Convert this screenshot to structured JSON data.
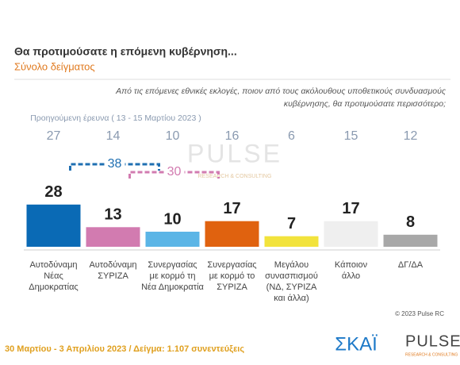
{
  "chart_data": {
    "type": "bar",
    "title": "Θα προτιμούσατε η επόμενη κυβέρνηση...",
    "subtitle": "Σύνολο δείγματος",
    "question": [
      "Από τις επόμενες εθνικές εκλογές, ποιον από τους ακόλουθους υποθετικούς συνδυασμούς",
      "κυβέρνησης, θα προτιμούσατε περισσότερο;"
    ],
    "categories": [
      [
        "Αυτοδύναμη",
        "Νέας",
        "Δημοκρατίας"
      ],
      [
        "Αυτοδύναμη",
        "ΣΥΡΙΖΑ"
      ],
      [
        "Συνεργασίας",
        "με κορμό τη",
        "Νέα Δημοκρατία"
      ],
      [
        "Συνεργασίας",
        "με κορμό το",
        "ΣΥΡΙΖΑ"
      ],
      [
        "Μεγάλου",
        "συνασπισμού",
        "(ΝΔ, ΣΥΡΙΖΑ",
        "και άλλα)"
      ],
      [
        "Κάποιον",
        "άλλο"
      ],
      [
        "ΔΓ/ΔΑ"
      ]
    ],
    "values": [
      28,
      13,
      10,
      17,
      7,
      17,
      8
    ],
    "colors": [
      "#0a6ab5",
      "#d27bb0",
      "#5bb5e6",
      "#e0620f",
      "#f2e33c",
      "#efefef",
      "#a8a8a8"
    ],
    "previous": {
      "label": "Προηγούμενη έρευνα ( 13 - 15 Μαρτίου 2023 )",
      "values": [
        27,
        14,
        10,
        16,
        6,
        15,
        12
      ]
    },
    "combined": [
      {
        "value": 38,
        "of": [
          0,
          2
        ],
        "color": "#1f6fb2"
      },
      {
        "value": 30,
        "of": [
          1,
          3
        ],
        "color": "#d27bb0"
      }
    ],
    "watermark": {
      "title": "PULSE",
      "subtitle": "RESEARCH & CONSULTING"
    },
    "copyright": "© 2023 Pulse RC",
    "footer": "30 Μαρτίου - 3 Απριλίου 2023  /  Δείγμα:  1.107 συνεντεύξεις",
    "logos": {
      "broadcaster": "ΣΚΑΪ",
      "pollster": "PULSE",
      "pollster_sub": "RESEARCH & CONSULTING"
    }
  }
}
